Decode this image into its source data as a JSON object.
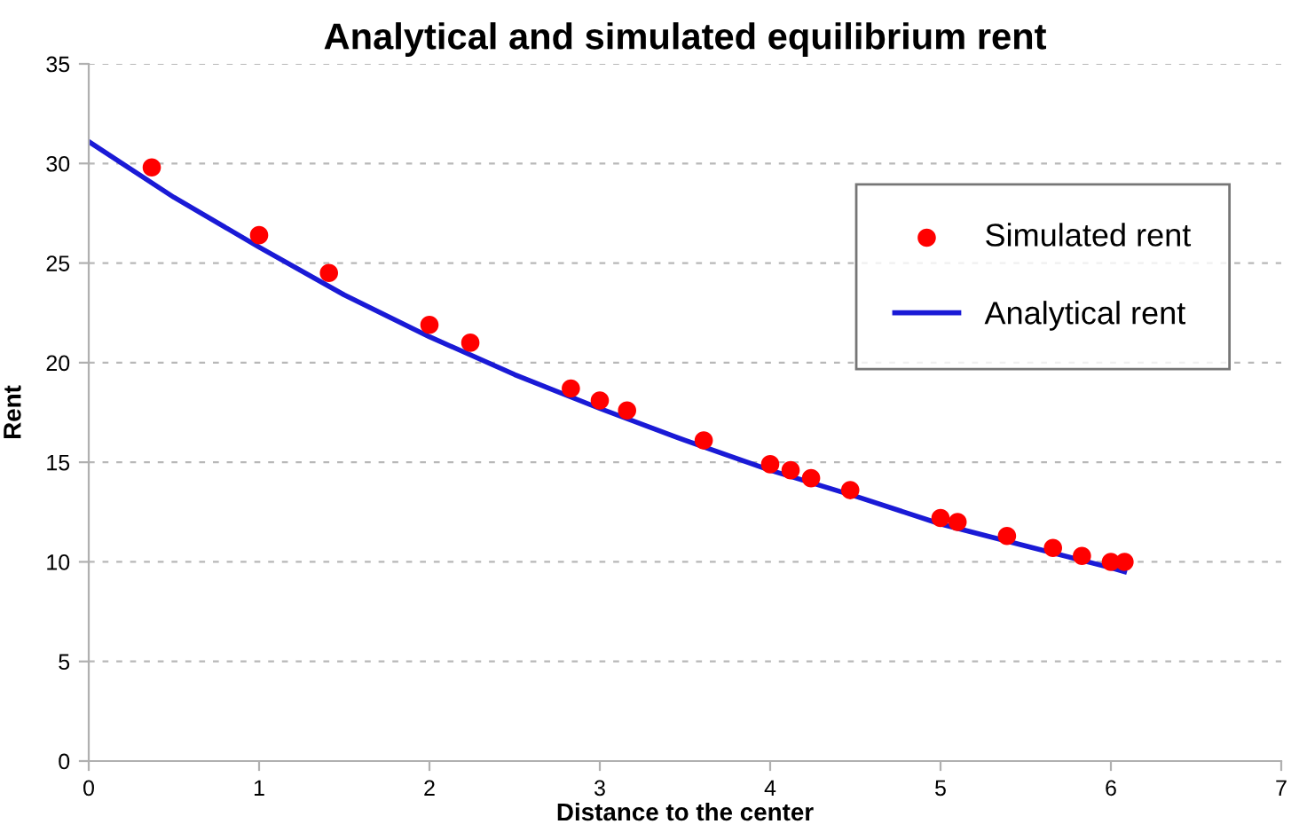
{
  "chart_data": {
    "type": "scatter",
    "title": "Analytical and simulated equilibrium rent",
    "xlabel": "Distance to the center",
    "ylabel": "Rent",
    "series": [
      {
        "name": "Simulated rent",
        "color": "#ff0000",
        "marker": "circle",
        "x": [
          0.37,
          1.0,
          1.41,
          2.0,
          2.24,
          2.83,
          3.0,
          3.16,
          3.61,
          4.0,
          4.12,
          4.24,
          4.47,
          5.0,
          5.1,
          5.39,
          5.66,
          5.83,
          6.0,
          6.08
        ],
        "values": [
          29.8,
          26.4,
          24.5,
          21.9,
          21.0,
          18.7,
          18.1,
          17.6,
          16.1,
          14.9,
          14.6,
          14.2,
          13.6,
          12.2,
          12.0,
          11.3,
          10.7,
          10.3,
          10.0,
          10.0
        ]
      },
      {
        "name": "Analytical rent",
        "type": "line",
        "color": "#1a1ad6",
        "marker": "none",
        "x": [
          0,
          0.5,
          1,
          1.5,
          2,
          2.5,
          3,
          3.5,
          4,
          4.5,
          5,
          5.5,
          6,
          6.08
        ],
        "values": [
          31.1,
          28.3,
          25.8,
          23.4,
          21.3,
          19.4,
          17.7,
          16.1,
          14.6,
          13.3,
          11.9,
          10.8,
          9.7,
          9.5
        ]
      }
    ],
    "xlim": [
      0,
      7
    ],
    "ylim": [
      0,
      35
    ],
    "xticks": [
      0,
      1,
      2,
      3,
      4,
      5,
      6,
      7
    ],
    "yticks": [
      0,
      5,
      10,
      15,
      20,
      25,
      30,
      35
    ],
    "grid": "y",
    "legend": "top right"
  }
}
